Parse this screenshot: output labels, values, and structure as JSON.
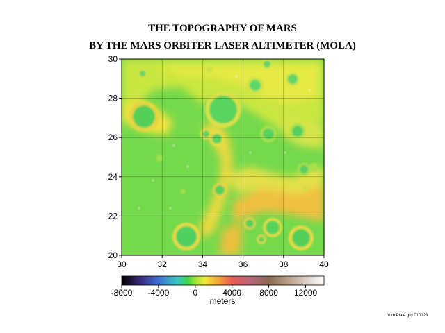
{
  "title_line1": "THE TOPOGRAPHY OF MARS",
  "title_line2": "BY THE MARS ORBITER LASER ALTIMETER (MOLA)",
  "map": {
    "x_axis": {
      "min": 30,
      "max": 40,
      "ticks": [
        "30",
        "32",
        "34",
        "36",
        "38",
        "40"
      ]
    },
    "y_axis": {
      "min": 20,
      "max": 30,
      "ticks": [
        "20",
        "22",
        "24",
        "26",
        "28",
        "30"
      ]
    },
    "grid": true
  },
  "colorbar": {
    "min": -8000,
    "max": 14000,
    "tick_labels": [
      "-8000",
      "-4000",
      "0",
      "4000",
      "8000",
      "12000"
    ],
    "unit_label": "meters",
    "stops": [
      {
        "value": -8000,
        "color": "#000000"
      },
      {
        "value": -6000,
        "color": "#3b2a7a"
      },
      {
        "value": -4000,
        "color": "#3d6fd2"
      },
      {
        "value": -2000,
        "color": "#39c6c3"
      },
      {
        "value": -800,
        "color": "#3fd64a"
      },
      {
        "value": 0,
        "color": "#9ee436"
      },
      {
        "value": 1000,
        "color": "#f2ea36"
      },
      {
        "value": 2500,
        "color": "#f1a637"
      },
      {
        "value": 4000,
        "color": "#ea5a55"
      },
      {
        "value": 6000,
        "color": "#b7677a"
      },
      {
        "value": 8000,
        "color": "#8a6a52"
      },
      {
        "value": 10000,
        "color": "#b69c86"
      },
      {
        "value": 14000,
        "color": "#ffffff"
      }
    ]
  },
  "credit": "from Plate grd 010123"
}
